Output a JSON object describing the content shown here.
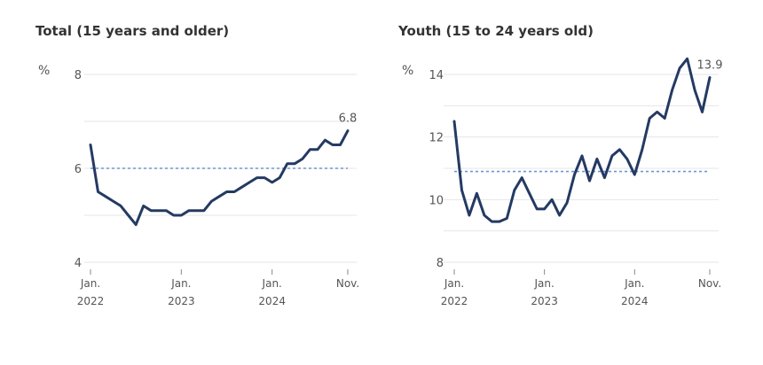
{
  "colors": {
    "line": "#243a63",
    "reference": "#6f95d6",
    "grid": "#e6e6e6",
    "text": "#555555",
    "title": "#333333"
  },
  "chart_data": [
    {
      "type": "line",
      "title": "Total (15 years and older)",
      "unit_label": "%",
      "ylim": [
        4,
        8
      ],
      "yticks": [
        4,
        6,
        8
      ],
      "grid": "horizontal",
      "x_tick_labels": [
        {
          "month": "Jan.",
          "year": "2022"
        },
        {
          "month": "Jan.",
          "year": "2023"
        },
        {
          "month": "Jan.",
          "year": "2024"
        },
        {
          "month": "Nov.",
          "year": ""
        }
      ],
      "x_tick_dates": [
        "2022-01",
        "2023-01",
        "2024-01",
        "2024-11"
      ],
      "x": [
        "2022-01",
        "2022-02",
        "2022-03",
        "2022-04",
        "2022-05",
        "2022-06",
        "2022-07",
        "2022-08",
        "2022-09",
        "2022-10",
        "2022-11",
        "2022-12",
        "2023-01",
        "2023-02",
        "2023-03",
        "2023-04",
        "2023-05",
        "2023-06",
        "2023-07",
        "2023-08",
        "2023-09",
        "2023-10",
        "2023-11",
        "2023-12",
        "2024-01",
        "2024-02",
        "2024-03",
        "2024-04",
        "2024-05",
        "2024-06",
        "2024-07",
        "2024-08",
        "2024-09",
        "2024-10",
        "2024-11"
      ],
      "values": [
        6.5,
        5.5,
        5.4,
        5.3,
        5.2,
        5.0,
        4.8,
        5.2,
        5.1,
        5.1,
        5.1,
        5.0,
        5.0,
        5.1,
        5.1,
        5.1,
        5.3,
        5.4,
        5.5,
        5.5,
        5.6,
        5.7,
        5.8,
        5.8,
        5.7,
        5.8,
        6.1,
        6.1,
        6.2,
        6.4,
        6.4,
        6.6,
        6.5,
        6.5,
        6.8
      ],
      "reference_value": 6.0,
      "end_label": "6.8"
    },
    {
      "type": "line",
      "title": "Youth (15 to 24 years old)",
      "unit_label": "%",
      "ylim": [
        8,
        14
      ],
      "yticks": [
        8,
        10,
        12,
        14
      ],
      "grid": "horizontal",
      "x_tick_labels": [
        {
          "month": "Jan.",
          "year": "2022"
        },
        {
          "month": "Jan.",
          "year": "2023"
        },
        {
          "month": "Jan.",
          "year": "2024"
        },
        {
          "month": "Nov.",
          "year": ""
        }
      ],
      "x_tick_dates": [
        "2022-01",
        "2023-01",
        "2024-01",
        "2024-11"
      ],
      "x": [
        "2022-01",
        "2022-02",
        "2022-03",
        "2022-04",
        "2022-05",
        "2022-06",
        "2022-07",
        "2022-08",
        "2022-09",
        "2022-10",
        "2022-11",
        "2022-12",
        "2023-01",
        "2023-02",
        "2023-03",
        "2023-04",
        "2023-05",
        "2023-06",
        "2023-07",
        "2023-08",
        "2023-09",
        "2023-10",
        "2023-11",
        "2023-12",
        "2024-01",
        "2024-02",
        "2024-03",
        "2024-04",
        "2024-05",
        "2024-06",
        "2024-07",
        "2024-08",
        "2024-09",
        "2024-10",
        "2024-11"
      ],
      "values": [
        12.5,
        10.3,
        9.5,
        10.2,
        9.5,
        9.3,
        9.3,
        9.4,
        10.3,
        10.7,
        10.2,
        9.7,
        9.7,
        10.0,
        9.5,
        9.9,
        10.8,
        11.4,
        10.6,
        11.3,
        10.7,
        11.4,
        11.6,
        11.3,
        10.8,
        11.6,
        12.6,
        12.8,
        12.6,
        13.5,
        14.2,
        14.5,
        13.5,
        12.8,
        13.9
      ],
      "reference_value": 10.9,
      "end_label": "13.9"
    }
  ]
}
